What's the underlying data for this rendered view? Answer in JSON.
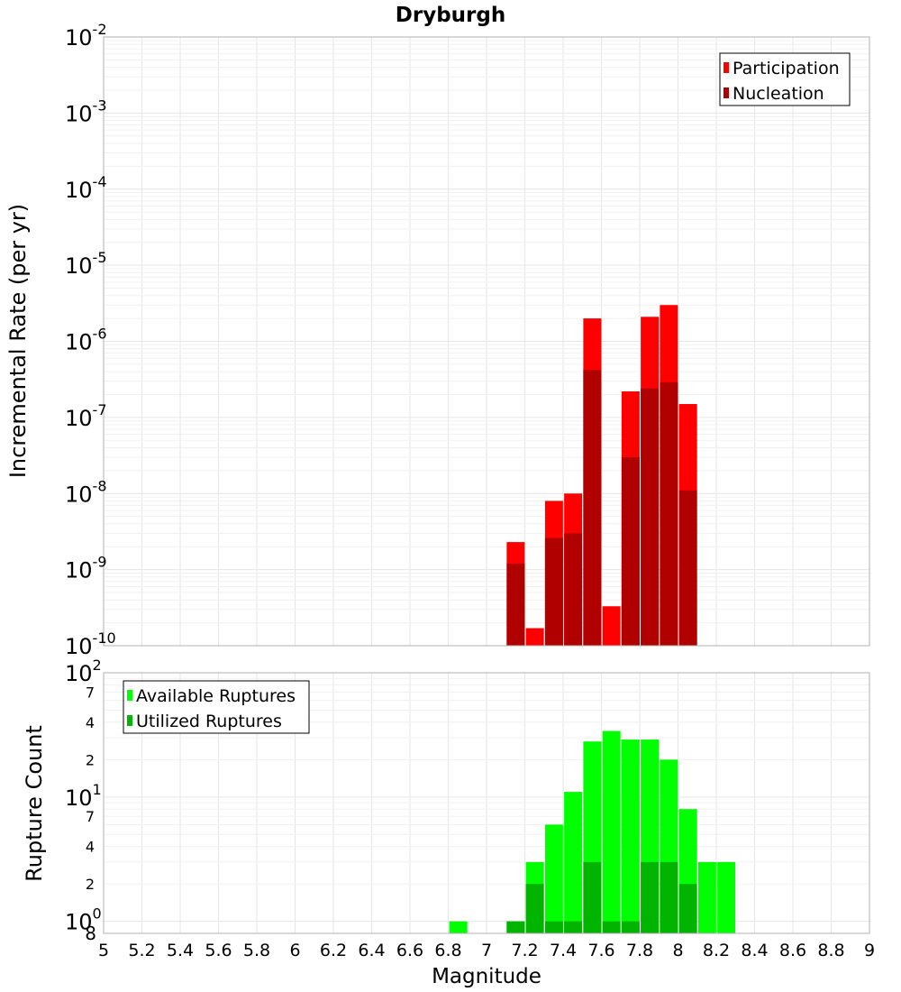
{
  "title": "Dryburgh",
  "chart_data": [
    {
      "type": "bar",
      "panel": "top",
      "ylabel": "Incremental Rate (per yr)",
      "yscale": "log",
      "ylim": [
        1e-10,
        0.01
      ],
      "y_tick_labels": [
        {
          "base": "10",
          "exp": "-10"
        },
        {
          "base": "10",
          "exp": "-9"
        },
        {
          "base": "10",
          "exp": "-8"
        },
        {
          "base": "10",
          "exp": "-7"
        },
        {
          "base": "10",
          "exp": "-6"
        },
        {
          "base": "10",
          "exp": "-5"
        },
        {
          "base": "10",
          "exp": "-4"
        },
        {
          "base": "10",
          "exp": "-3"
        },
        {
          "base": "10",
          "exp": "-2"
        }
      ],
      "legend": {
        "placement": "top-right"
      },
      "colors": {
        "Participation": "#ff0000",
        "Nucleation": "#b00000"
      },
      "series": [
        {
          "name": "Participation",
          "x": [
            7.15,
            7.25,
            7.35,
            7.45,
            7.55,
            7.65,
            7.75,
            7.85,
            7.95,
            8.05
          ],
          "values": [
            2.3e-09,
            1.7e-10,
            8e-09,
            1e-08,
            2e-06,
            3.3e-10,
            2.2e-07,
            2.1e-06,
            3e-06,
            1.5e-07
          ]
        },
        {
          "name": "Nucleation",
          "x": [
            7.15,
            7.35,
            7.45,
            7.55,
            7.75,
            7.85,
            7.95,
            8.05
          ],
          "values": [
            1.2e-09,
            2.6e-09,
            3e-09,
            4.2e-07,
            3e-08,
            2.4e-07,
            2.9e-07,
            1.1e-08
          ]
        }
      ]
    },
    {
      "type": "bar",
      "panel": "bottom",
      "ylabel": "Rupture Count",
      "xlabel": "Magnitude",
      "yscale": "log",
      "ylim": [
        0.8,
        100
      ],
      "y_tick_labels": [
        {
          "base": "10",
          "exp": "0",
          "value": 1
        },
        {
          "base": "2",
          "exp": "",
          "value": 2
        },
        {
          "base": "4",
          "exp": "",
          "value": 4
        },
        {
          "base": "7",
          "exp": "",
          "value": 7
        },
        {
          "base": "10",
          "exp": "1",
          "value": 10
        },
        {
          "base": "2",
          "exp": "",
          "value": 20
        },
        {
          "base": "4",
          "exp": "",
          "value": 40
        },
        {
          "base": "7",
          "exp": "",
          "value": 70
        },
        {
          "base": "10",
          "exp": "2",
          "value": 100
        }
      ],
      "bottom_label": "8",
      "xlim": [
        5,
        9
      ],
      "x_tick_labels": [
        "5",
        "5.2",
        "5.4",
        "5.6",
        "5.8",
        "6",
        "6.2",
        "6.4",
        "6.6",
        "6.8",
        "7",
        "7.2",
        "7.4",
        "7.6",
        "7.8",
        "8",
        "8.2",
        "8.4",
        "8.6",
        "8.8",
        "9"
      ],
      "legend": {
        "placement": "top-left"
      },
      "colors": {
        "Available Ruptures": "#00ff00",
        "Utilized Ruptures": "#00b400"
      },
      "series": [
        {
          "name": "Available Ruptures",
          "x": [
            6.85,
            7.15,
            7.25,
            7.35,
            7.45,
            7.55,
            7.65,
            7.75,
            7.85,
            7.95,
            8.05,
            8.15,
            8.25
          ],
          "values": [
            1,
            1,
            3,
            6,
            11,
            28,
            34,
            29,
            29,
            20,
            8,
            3,
            3
          ]
        },
        {
          "name": "Utilized Ruptures",
          "x": [
            7.15,
            7.25,
            7.35,
            7.45,
            7.55,
            7.65,
            7.75,
            7.85,
            7.95,
            8.05
          ],
          "values": [
            1,
            2,
            1,
            1,
            3,
            1,
            1,
            3,
            3,
            2
          ]
        }
      ]
    }
  ]
}
